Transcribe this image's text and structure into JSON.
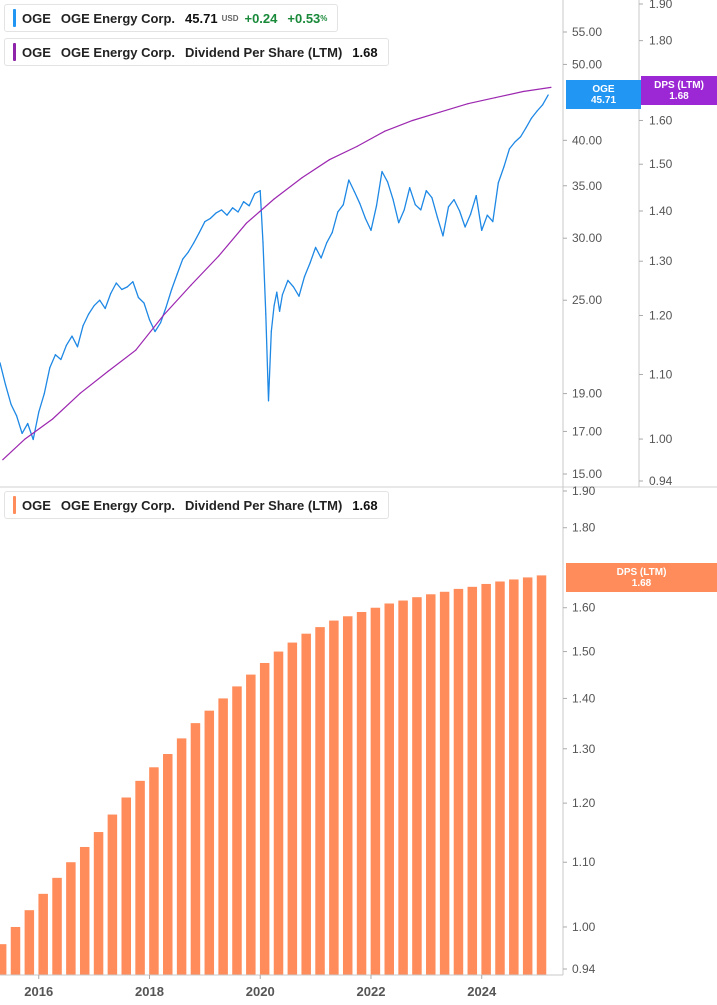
{
  "top_legend": {
    "ticker": "OGE",
    "name": "OGE Energy Corp.",
    "price": "45.71",
    "currency": "USD",
    "change": "+0.24",
    "change_pct": "+0.53",
    "pct_sign": "%",
    "color": "#2196f3"
  },
  "dps_legend_top": {
    "ticker": "OGE",
    "name": "OGE Energy Corp.",
    "metric": "Dividend Per Share (LTM)",
    "value": "1.68",
    "color": "#8e24aa"
  },
  "dps_legend_bottom": {
    "ticker": "OGE",
    "name": "OGE Energy Corp.",
    "metric": "Dividend Per Share (LTM)",
    "value": "1.68",
    "color": "#ff8c5a"
  },
  "price_tag": {
    "label": "OGE",
    "value": "45.71",
    "color": "#2196f3"
  },
  "dps_tag_top": {
    "label": "DPS (LTM)",
    "value": "1.68",
    "color": "#9c27d4"
  },
  "dps_tag_bottom": {
    "label": "DPS (LTM)",
    "value": "1.68",
    "color": "#ff8c5a"
  },
  "chart_data": [
    {
      "type": "line",
      "panel": "top",
      "scale": "log",
      "x_axis_labels": [
        "2016",
        "2018",
        "2020",
        "2022",
        "2024"
      ],
      "price_axis": {
        "ticks": [
          "15.00",
          "17.00",
          "19.00",
          "25.00",
          "30.00",
          "35.00",
          "40.00",
          "50.00",
          "55.00"
        ],
        "range": [
          15,
          60
        ]
      },
      "dps_axis": {
        "ticks": [
          "0.94",
          "1.00",
          "1.10",
          "1.20",
          "1.30",
          "1.40",
          "1.50",
          "1.60",
          "1.80",
          "1.90"
        ],
        "range": [
          0.94,
          1.9
        ]
      },
      "series": [
        {
          "name": "OGE",
          "axis": "price",
          "color": "#1e88e5",
          "x": [
            2015.3,
            2015.4,
            2015.5,
            2015.6,
            2015.7,
            2015.8,
            2015.9,
            2016.0,
            2016.1,
            2016.2,
            2016.3,
            2016.4,
            2016.5,
            2016.6,
            2016.7,
            2016.8,
            2016.9,
            2017.0,
            2017.1,
            2017.2,
            2017.3,
            2017.4,
            2017.5,
            2017.6,
            2017.7,
            2017.8,
            2017.9,
            2018.0,
            2018.1,
            2018.2,
            2018.3,
            2018.4,
            2018.5,
            2018.6,
            2018.7,
            2018.8,
            2018.9,
            2019.0,
            2019.1,
            2019.2,
            2019.3,
            2019.4,
            2019.5,
            2019.6,
            2019.7,
            2019.8,
            2019.9,
            2020.0,
            2020.05,
            2020.1,
            2020.15,
            2020.2,
            2020.25,
            2020.3,
            2020.35,
            2020.4,
            2020.5,
            2020.6,
            2020.7,
            2020.8,
            2020.9,
            2021.0,
            2021.1,
            2021.2,
            2021.3,
            2021.4,
            2021.5,
            2021.6,
            2021.7,
            2021.8,
            2021.9,
            2022.0,
            2022.1,
            2022.2,
            2022.3,
            2022.4,
            2022.5,
            2022.6,
            2022.7,
            2022.8,
            2022.9,
            2023.0,
            2023.1,
            2023.2,
            2023.3,
            2023.4,
            2023.5,
            2023.6,
            2023.7,
            2023.8,
            2023.9,
            2024.0,
            2024.1,
            2024.2,
            2024.3,
            2024.4,
            2024.5,
            2024.6,
            2024.7,
            2024.8,
            2024.9,
            2025.0,
            2025.1,
            2025.2
          ],
          "values": [
            20.8,
            19.5,
            18.4,
            17.8,
            16.9,
            17.4,
            16.6,
            18.0,
            19.0,
            20.5,
            21.3,
            21.0,
            21.9,
            22.5,
            21.8,
            23.2,
            24.0,
            24.6,
            25.0,
            24.4,
            25.5,
            26.3,
            25.8,
            26.0,
            26.4,
            25.2,
            24.8,
            23.6,
            22.8,
            23.4,
            24.5,
            25.8,
            27.0,
            28.2,
            28.8,
            29.6,
            30.5,
            31.5,
            31.8,
            32.3,
            32.6,
            32.1,
            32.8,
            32.4,
            33.4,
            33.0,
            34.2,
            34.5,
            29.6,
            24.0,
            18.6,
            22.8,
            24.6,
            25.6,
            24.2,
            25.4,
            26.5,
            26.0,
            25.3,
            26.8,
            27.9,
            29.2,
            28.3,
            29.6,
            30.5,
            32.4,
            33.1,
            35.6,
            34.4,
            33.2,
            31.8,
            30.7,
            33.0,
            36.5,
            35.4,
            33.6,
            31.4,
            32.6,
            34.8,
            33.1,
            32.6,
            34.5,
            33.8,
            31.9,
            30.2,
            32.9,
            33.6,
            32.5,
            31.0,
            32.2,
            34.0,
            30.7,
            32.1,
            31.5,
            35.3,
            37.0,
            39.0,
            39.8,
            40.4,
            41.5,
            42.7,
            43.6,
            44.4,
            45.71
          ]
        },
        {
          "name": "DPS (LTM)",
          "axis": "dps",
          "color": "#9c27b0",
          "x": [
            2015.35,
            2015.75,
            2016.25,
            2016.75,
            2017.25,
            2017.75,
            2018.25,
            2018.75,
            2019.25,
            2019.75,
            2020.25,
            2020.75,
            2021.25,
            2021.75,
            2022.25,
            2022.75,
            2023.25,
            2023.75,
            2024.25,
            2024.75,
            2025.25
          ],
          "values": [
            0.97,
            1.0,
            1.03,
            1.07,
            1.105,
            1.14,
            1.2,
            1.255,
            1.31,
            1.375,
            1.425,
            1.47,
            1.51,
            1.54,
            1.575,
            1.6,
            1.62,
            1.64,
            1.655,
            1.67,
            1.68
          ]
        }
      ]
    },
    {
      "type": "bar",
      "panel": "bottom",
      "scale": "log",
      "x_axis_labels": [
        "2016",
        "2018",
        "2020",
        "2022",
        "2024"
      ],
      "y_axis": {
        "ticks": [
          "0.94",
          "1.00",
          "1.10",
          "1.20",
          "1.30",
          "1.40",
          "1.50",
          "1.60",
          "1.80",
          "1.90"
        ],
        "range": [
          0.94,
          1.9
        ]
      },
      "series": [
        {
          "name": "DPS (LTM)",
          "color": "#ff8c5a",
          "x": [
            2015.33,
            2015.58,
            2015.83,
            2016.08,
            2016.33,
            2016.58,
            2016.83,
            2017.08,
            2017.33,
            2017.58,
            2017.83,
            2018.08,
            2018.33,
            2018.58,
            2018.83,
            2019.08,
            2019.33,
            2019.58,
            2019.83,
            2020.08,
            2020.33,
            2020.58,
            2020.83,
            2021.08,
            2021.33,
            2021.58,
            2021.83,
            2022.08,
            2022.33,
            2022.58,
            2022.83,
            2023.08,
            2023.33,
            2023.58,
            2023.83,
            2024.08,
            2024.33,
            2024.58,
            2024.83,
            2025.08
          ],
          "values": [
            0.975,
            1.0,
            1.025,
            1.05,
            1.075,
            1.1,
            1.125,
            1.15,
            1.18,
            1.21,
            1.24,
            1.265,
            1.29,
            1.32,
            1.35,
            1.375,
            1.4,
            1.425,
            1.45,
            1.475,
            1.5,
            1.52,
            1.54,
            1.555,
            1.57,
            1.58,
            1.59,
            1.6,
            1.61,
            1.617,
            1.625,
            1.632,
            1.638,
            1.645,
            1.65,
            1.657,
            1.663,
            1.668,
            1.673,
            1.678
          ]
        }
      ]
    }
  ]
}
